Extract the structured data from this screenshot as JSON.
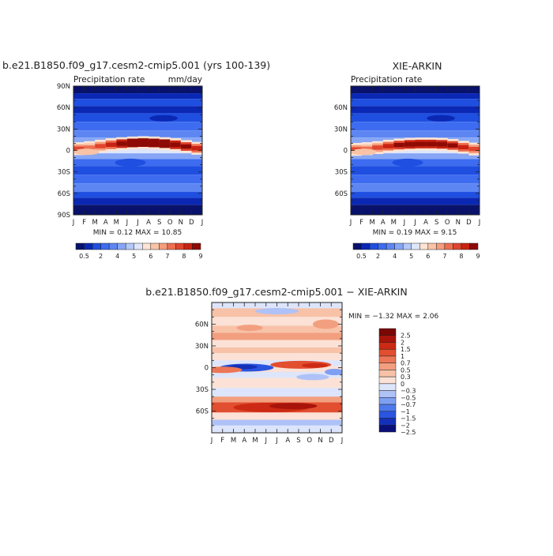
{
  "titles": {
    "panel1": "b.e21.B1850.f09_g17.cesm2-cmip5.001 (yrs 100-139)",
    "panel2": "XIE-ARKIN",
    "panel3": "b.e21.B1850.f09_g17.cesm2-cmip5.001 − XIE-ARKIN"
  },
  "colors": {
    "precip_scale": [
      "#08126b",
      "#0a28b4",
      "#1f4fe0",
      "#3e6cf0",
      "#5d86f2",
      "#86a6f5",
      "#b4c8f8",
      "#dde6fb",
      "#fde4d4",
      "#f9c3a6",
      "#f59d7c",
      "#ee6f50",
      "#e0452d",
      "#c82312",
      "#8e0a05"
    ],
    "diff_scale": [
      "#0a0f7a",
      "#1530b8",
      "#2a55e0",
      "#4d79ec",
      "#7f9ff2",
      "#afc2f7",
      "#dce5fb",
      "#fbe1d6",
      "#f7c2a8",
      "#f29f80",
      "#ec7656",
      "#e24e30",
      "#cc2a14",
      "#a8140a",
      "#7a0805"
    ]
  },
  "chart_data": [
    {
      "type": "heatmap",
      "title": "b.e21.B1850.f09_g17.cesm2-cmip5.001 (yrs 100-139)",
      "subtitle_left": "Precipitation rate",
      "subtitle_right": "mm/day",
      "x_ticks": [
        "J",
        "F",
        "M",
        "A",
        "M",
        "J",
        "J",
        "A",
        "S",
        "O",
        "N",
        "D",
        "J"
      ],
      "y_ticks": [
        "90N",
        "60N",
        "30N",
        "0",
        "30S",
        "60S",
        "90S"
      ],
      "ylim": [
        -90,
        90
      ],
      "stats": "MIN =    0.12 MAX =   10.85",
      "levels": [
        "0.5",
        "2",
        "4",
        "5",
        "6",
        "7",
        "8",
        "9"
      ],
      "itcz": {
        "lat": [
          2,
          3,
          5,
          7,
          9,
          10,
          11,
          11,
          10,
          9,
          7,
          4,
          2
        ],
        "peak": [
          6,
          5,
          5,
          6,
          8,
          9,
          10,
          11,
          10,
          9,
          8,
          7,
          6
        ]
      }
    },
    {
      "type": "heatmap",
      "title": "XIE-ARKIN",
      "subtitle_left": "Precipitation rate",
      "y_ticks": [
        "60N",
        "30N",
        "0",
        "30S",
        "60S"
      ],
      "ylim": [
        -90,
        90
      ],
      "x_ticks": [
        "J",
        "F",
        "M",
        "A",
        "M",
        "J",
        "J",
        "A",
        "S",
        "O",
        "N",
        "D",
        "J"
      ],
      "stats": "MIN =    0.19 MAX =    9.15",
      "levels": [
        "0.5",
        "2",
        "4",
        "5",
        "6",
        "7",
        "8",
        "9"
      ],
      "itcz": {
        "lat": [
          1,
          2,
          3,
          5,
          7,
          8,
          9,
          9,
          9,
          8,
          6,
          3,
          1
        ],
        "peak": [
          6,
          5,
          5,
          6,
          7,
          8,
          9,
          9,
          9,
          8,
          7,
          6,
          6
        ]
      }
    },
    {
      "type": "heatmap",
      "title": "b.e21.B1850.f09_g17.cesm2-cmip5.001 − XIE-ARKIN",
      "y_ticks": [
        "60N",
        "30N",
        "0",
        "30S",
        "60S"
      ],
      "ylim": [
        -90,
        90
      ],
      "x_ticks": [
        "J",
        "F",
        "M",
        "A",
        "M",
        "J",
        "J",
        "A",
        "S",
        "O",
        "N",
        "D",
        "J"
      ],
      "stats": "MIN =   −1.32 MAX =    2.06",
      "levels": [
        "2.5",
        "2",
        "1.5",
        "1",
        "0.7",
        "0.5",
        "0.3",
        "0",
        "−0.3",
        "−0.5",
        "−0.7",
        "−1",
        "−1.5",
        "−2",
        "−2.5"
      ]
    }
  ]
}
